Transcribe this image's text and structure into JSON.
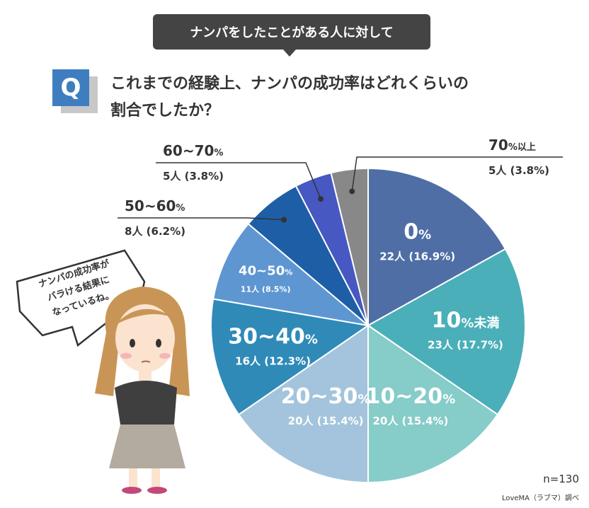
{
  "banner": "ナンパをしたことがある人に対して",
  "question": {
    "badge": "Q",
    "line1": "これまでの経験上、ナンパの成功率はどれくらいの",
    "line2": "割合でしたか？"
  },
  "speech_bubble": [
    "ナンパの成功率が",
    "バラける結果に",
    "なっているね。"
  ],
  "n_label": "n=130",
  "source": "LoveMA（ラブマ）調べ",
  "colors": {
    "banner": "#444444",
    "badge": "#3e7ec0",
    "slices": [
      "#4e6ea5",
      "#4aafb9",
      "#86ccc8",
      "#a3c4dc",
      "#2f8ab8",
      "#5e96d2",
      "#1d5ea7",
      "#4758c2",
      "#888888"
    ]
  },
  "chart_data": {
    "type": "pie",
    "slices": [
      {
        "label": "0",
        "unit": "%",
        "value": 16.9,
        "count": "22人",
        "pct": "(16.9%)"
      },
      {
        "label": "10",
        "unit": "%未満",
        "value": 17.7,
        "count": "23人",
        "pct": "(17.7%)"
      },
      {
        "label": "10~20",
        "unit": "%",
        "value": 15.4,
        "count": "20人",
        "pct": "(15.4%)"
      },
      {
        "label": "20~30",
        "unit": "%",
        "value": 15.4,
        "count": "20人",
        "pct": "(15.4%)"
      },
      {
        "label": "30~40",
        "unit": "%",
        "value": 12.3,
        "count": "16人",
        "pct": "(12.3%)"
      },
      {
        "label": "40~50",
        "unit": "%",
        "value": 8.5,
        "count": "11人",
        "pct": "(8.5%)"
      },
      {
        "label": "50~60",
        "unit": "%",
        "value": 6.2,
        "count": "8人",
        "pct": "(6.2%)"
      },
      {
        "label": "60~70",
        "unit": "%",
        "value": 3.8,
        "count": "5人",
        "pct": "(3.8%)"
      },
      {
        "label": "70",
        "unit": "%以上",
        "value": 3.8,
        "count": "5人",
        "pct": "(3.8%)"
      }
    ]
  }
}
